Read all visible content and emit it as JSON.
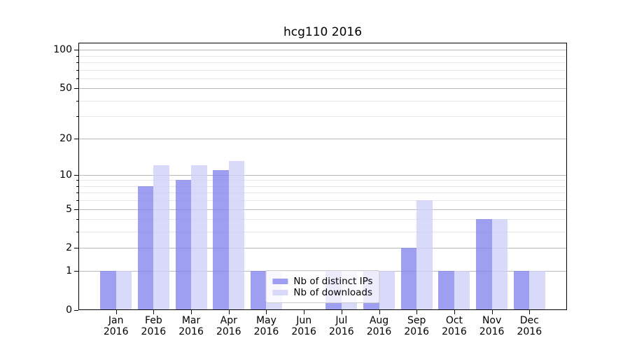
{
  "chart_data": {
    "type": "bar",
    "title": "hcg110 2016",
    "categories": [
      "Jan",
      "Feb",
      "Mar",
      "Apr",
      "May",
      "Jun",
      "Jul",
      "Aug",
      "Sep",
      "Oct",
      "Nov",
      "Dec"
    ],
    "x_year_label": "2016",
    "series": [
      {
        "name": "Nb of distinct IPs",
        "color": "#8787ef",
        "values": [
          1,
          8,
          9,
          11,
          1,
          0,
          1,
          1,
          2,
          1,
          4,
          1
        ]
      },
      {
        "name": "Nb of downloads",
        "color": "#cfcff8",
        "values": [
          1,
          12,
          12,
          13,
          1,
          0,
          1,
          1,
          6,
          1,
          4,
          1
        ]
      }
    ],
    "y_axis": {
      "scale": "log1p",
      "tick_values": [
        100,
        50,
        20,
        10,
        5,
        2,
        1,
        0
      ],
      "minor_gridline_values": [
        3,
        4,
        6,
        7,
        8,
        9,
        30,
        40,
        60,
        70,
        80,
        90
      ],
      "range": [
        0,
        113.5
      ]
    },
    "grid": {
      "enabled": true,
      "major_color": "#bababa",
      "minor_color": "#e7e7e7"
    },
    "legend": {
      "position": "lower center"
    },
    "bar_opacity": 0.8,
    "xlabel": "",
    "ylabel": ""
  }
}
